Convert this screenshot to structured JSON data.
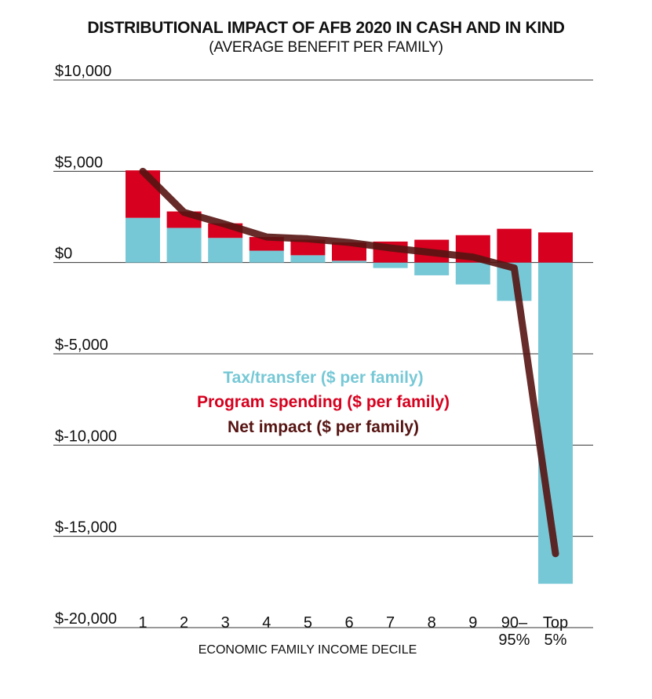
{
  "chart_data": {
    "type": "bar",
    "title": "DISTRIBUTIONAL IMPACT OF AFB 2020 IN CASH AND IN KIND",
    "subtitle": "(AVERAGE BENEFIT PER FAMILY)",
    "xlabel": "ECONOMIC FAMILY INCOME DECILE",
    "ylabel": "",
    "ylim": [
      -20000,
      10000
    ],
    "yticks": [
      10000,
      5000,
      0,
      -5000,
      -10000,
      -15000,
      -20000
    ],
    "ytick_labels": [
      "$10,000",
      "$5,000",
      "$0",
      "$-5,000",
      "$-10,000",
      "$-15,000",
      "$-20,000"
    ],
    "grid": true,
    "categories": [
      "1",
      "2",
      "3",
      "4",
      "5",
      "6",
      "7",
      "8",
      "9",
      "90–\n95%",
      "Top\n5%"
    ],
    "series": [
      {
        "name": "Tax/transfer ($ per family)",
        "kind": "bar",
        "color": "#77c8d6",
        "values": [
          2450,
          1900,
          1350,
          650,
          400,
          100,
          -300,
          -700,
          -1200,
          -2100,
          -17600
        ]
      },
      {
        "name": "Program spending ($ per family)",
        "kind": "bar",
        "color": "#d7001e",
        "values": [
          2600,
          900,
          800,
          750,
          850,
          1000,
          1150,
          1250,
          1500,
          1850,
          1650
        ]
      },
      {
        "name": "Net impact ($ per family)",
        "kind": "line",
        "color": "#561412",
        "values": [
          5000,
          2750,
          2100,
          1400,
          1300,
          1100,
          800,
          550,
          300,
          -300,
          -15950
        ]
      }
    ],
    "legend_position": "center"
  }
}
